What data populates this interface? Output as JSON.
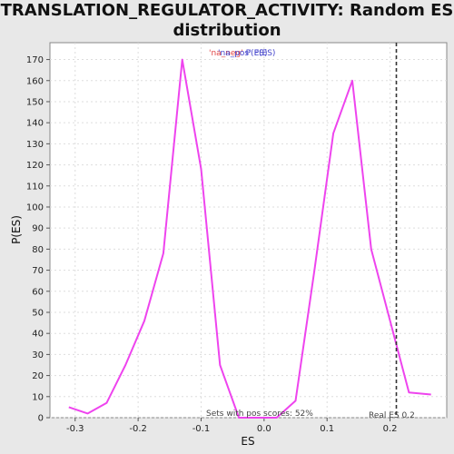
{
  "chart_data": {
    "type": "line",
    "title_line1": "TRANSLATION_REGULATOR_ACTIVITY: Random ES",
    "title_line2": "distribution",
    "legend": {
      "part1": "'na_neg'",
      "part2": "P(ES)",
      "part3": "'na_pos'",
      "part4": "P(ES)"
    },
    "xlabel": "ES",
    "ylabel": "P(ES)",
    "xlim": [
      -0.34,
      0.29
    ],
    "ylim": [
      0,
      178
    ],
    "x_ticks": [
      -0.3,
      -0.2,
      -0.1,
      0.0,
      0.1,
      0.2
    ],
    "x_tick_labels": [
      "-0.3",
      "-0.2",
      "-0.1",
      "0.0",
      "0.1",
      "0.2"
    ],
    "y_ticks": [
      0,
      10,
      20,
      30,
      40,
      50,
      60,
      70,
      80,
      90,
      100,
      110,
      120,
      130,
      140,
      150,
      160,
      170
    ],
    "y_tick_labels": [
      "0",
      "10",
      "20",
      "30",
      "40",
      "50",
      "60",
      "70",
      "80",
      "90",
      "100",
      "110",
      "120",
      "130",
      "140",
      "150",
      "160",
      "170"
    ],
    "grid": true,
    "series": [
      {
        "color": "#ee44ee",
        "x": [
          -0.31,
          -0.28,
          -0.25,
          -0.22,
          -0.19,
          -0.16,
          -0.13,
          -0.1,
          -0.07,
          -0.04,
          -0.01,
          0.02,
          0.05,
          0.08,
          0.11,
          0.14,
          0.17,
          0.2,
          0.23,
          0.265
        ],
        "y": [
          5,
          2,
          7,
          25,
          46,
          78,
          170,
          118,
          25,
          0,
          0,
          0,
          8,
          70,
          135,
          160,
          80,
          46,
          12,
          11
        ]
      }
    ],
    "real_es": {
      "x": 0.21,
      "label": "Real ES 0.2"
    },
    "annotation": "Sets with pos scores: 52%"
  }
}
